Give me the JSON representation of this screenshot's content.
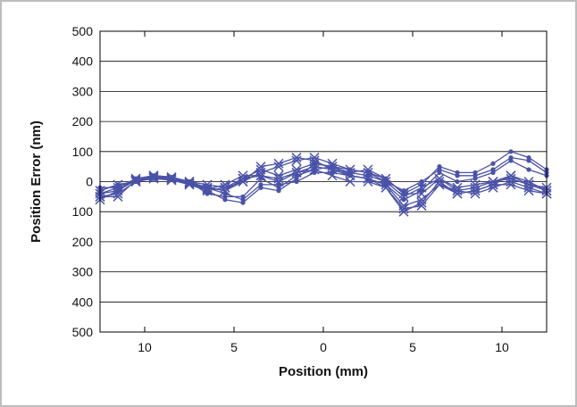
{
  "chart_data": {
    "type": "line",
    "title": "",
    "xlabel": "Position (mm)",
    "ylabel": "Position Error (nm)",
    "xlim": [
      -12.5,
      12.5
    ],
    "ylim": [
      -500,
      500
    ],
    "x_ticks": [
      {
        "value": -10,
        "label": "10"
      },
      {
        "value": -5,
        "label": "5"
      },
      {
        "value": 0,
        "label": "0"
      },
      {
        "value": 5,
        "label": "5"
      },
      {
        "value": 10,
        "label": "10"
      }
    ],
    "y_ticks": [
      {
        "value": 500,
        "label": "500"
      },
      {
        "value": 400,
        "label": "400"
      },
      {
        "value": 300,
        "label": "300"
      },
      {
        "value": 200,
        "label": "200"
      },
      {
        "value": 100,
        "label": "100"
      },
      {
        "value": 0,
        "label": "0"
      },
      {
        "value": -100,
        "label": "100"
      },
      {
        "value": -200,
        "label": "200"
      },
      {
        "value": -300,
        "label": "300"
      },
      {
        "value": -400,
        "label": "400"
      },
      {
        "value": -500,
        "label": "500"
      }
    ],
    "grid": "horizontal",
    "series_color": "#4a52a8",
    "x": [
      -12.5,
      -11.5,
      -10.5,
      -9.5,
      -8.5,
      -7.5,
      -6.5,
      -5.5,
      -4.5,
      -3.5,
      -2.5,
      -1.5,
      -0.5,
      0.5,
      1.5,
      2.5,
      3.5,
      4.5,
      5.5,
      6.5,
      7.5,
      8.5,
      9.5,
      10.5,
      11.5,
      12.5
    ],
    "series": [
      {
        "marker": "x",
        "values": [
          -50,
          -40,
          0,
          20,
          10,
          0,
          -20,
          -30,
          0,
          30,
          50,
          70,
          80,
          60,
          40,
          30,
          0,
          -50,
          -20,
          10,
          -20,
          -10,
          0,
          10,
          -10,
          -20
        ]
      },
      {
        "marker": "x",
        "values": [
          -60,
          -30,
          10,
          15,
          10,
          -10,
          -30,
          -20,
          10,
          40,
          20,
          40,
          60,
          50,
          20,
          10,
          -20,
          -100,
          -70,
          0,
          -40,
          -30,
          -10,
          20,
          0,
          -30
        ]
      },
      {
        "marker": "x",
        "values": [
          -40,
          -20,
          5,
          10,
          5,
          -5,
          -25,
          -10,
          20,
          20,
          10,
          30,
          50,
          40,
          20,
          10,
          -10,
          -80,
          -60,
          -10,
          -30,
          -40,
          -20,
          0,
          -20,
          -40
        ]
      },
      {
        "marker": "x",
        "values": [
          -30,
          -10,
          0,
          20,
          15,
          0,
          -10,
          -20,
          0,
          50,
          60,
          80,
          70,
          40,
          30,
          40,
          10,
          -40,
          -40,
          10,
          -30,
          -20,
          0,
          20,
          -10,
          -30
        ]
      },
      {
        "marker": "x",
        "values": [
          -50,
          -50,
          5,
          15,
          5,
          -10,
          -20,
          -30,
          10,
          20,
          0,
          30,
          40,
          20,
          0,
          0,
          -20,
          -90,
          -80,
          -10,
          -40,
          -30,
          -10,
          -10,
          -30,
          -40
        ]
      },
      {
        "marker": "dot",
        "values": [
          -30,
          -10,
          0,
          10,
          10,
          0,
          -40,
          -50,
          -50,
          10,
          -20,
          20,
          40,
          50,
          40,
          30,
          10,
          -40,
          -10,
          50,
          30,
          30,
          60,
          100,
          80,
          40
        ]
      },
      {
        "marker": "dot",
        "values": [
          -20,
          -20,
          10,
          20,
          15,
          0,
          -30,
          -60,
          -70,
          -20,
          -30,
          10,
          60,
          50,
          30,
          20,
          0,
          -30,
          0,
          40,
          20,
          20,
          40,
          80,
          70,
          30
        ]
      },
      {
        "marker": "dot",
        "values": [
          -40,
          -30,
          5,
          15,
          10,
          -5,
          -20,
          -40,
          -60,
          -10,
          -10,
          0,
          30,
          30,
          20,
          10,
          -10,
          -60,
          -30,
          30,
          0,
          10,
          30,
          70,
          40,
          20
        ]
      }
    ]
  }
}
